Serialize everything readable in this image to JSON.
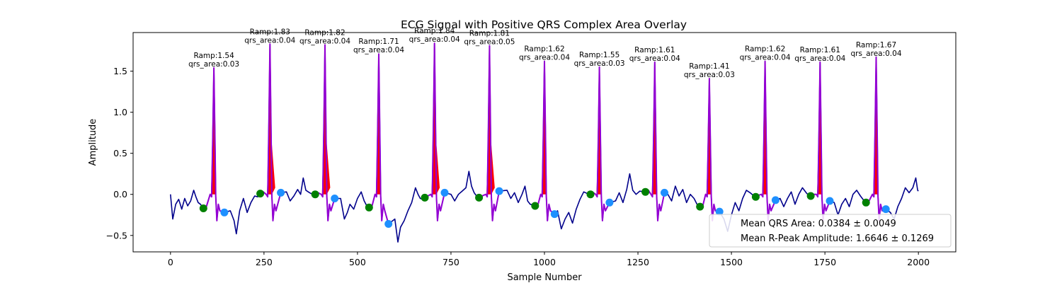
{
  "chart_data": {
    "type": "line",
    "title": "ECG Signal with Positive QRS Complex Area Overlay",
    "xlabel": "Sample Number",
    "ylabel": "Amplitude",
    "xlim": [
      -100,
      2100
    ],
    "ylim": [
      -0.7,
      1.97
    ],
    "xticks": [
      0,
      250,
      500,
      750,
      1000,
      1250,
      1500,
      1750,
      2000
    ],
    "yticks": [
      -0.5,
      0.0,
      0.5,
      1.0,
      1.5
    ],
    "grid": false,
    "colors": {
      "signal": "#00008b",
      "qrs_segment": "#9400d3",
      "qrs_fill": "#ff0000",
      "onset_marker": "#008000",
      "offset_marker": "#1e90ff"
    },
    "beats": [
      {
        "r": 116,
        "amp": 1.54,
        "qrs_area": 0.03,
        "onset": [
          88,
          -0.17
        ],
        "offset": [
          144,
          -0.22
        ],
        "ramp_label": "Ramp:1.54",
        "area_label": "qrs_area:0.03"
      },
      {
        "r": 266,
        "amp": 1.83,
        "qrs_area": 0.04,
        "onset": [
          240,
          0.01
        ],
        "offset": [
          295,
          0.02
        ],
        "ramp_label": "Ramp:1.83",
        "area_label": "qrs_area:0.04"
      },
      {
        "r": 413,
        "amp": 1.82,
        "qrs_area": 0.04,
        "onset": [
          387,
          0.0
        ],
        "offset": [
          439,
          -0.05
        ],
        "ramp_label": "Ramp:1.82",
        "area_label": "qrs_area:0.04"
      },
      {
        "r": 557,
        "amp": 1.71,
        "qrs_area": 0.04,
        "onset": [
          531,
          -0.16
        ],
        "offset": [
          583,
          -0.36
        ],
        "ramp_label": "Ramp:1.71",
        "area_label": "qrs_area:0.04"
      },
      {
        "r": 706,
        "amp": 1.84,
        "qrs_area": 0.04,
        "onset": [
          680,
          -0.04
        ],
        "offset": [
          733,
          0.02
        ],
        "ramp_label": "Ramp:1.84",
        "area_label": "qrs_area:0.04"
      },
      {
        "r": 853,
        "amp": 1.81,
        "qrs_area": 0.05,
        "onset": [
          825,
          -0.04
        ],
        "offset": [
          879,
          0.04
        ],
        "ramp_label": "Ramp:1.81",
        "area_label": "qrs_area:0.05"
      },
      {
        "r": 1000,
        "amp": 1.62,
        "qrs_area": 0.04,
        "onset": [
          975,
          -0.14
        ],
        "offset": [
          1027,
          -0.24
        ],
        "ramp_label": "Ramp:1.62",
        "area_label": "qrs_area:0.04"
      },
      {
        "r": 1147,
        "amp": 1.55,
        "qrs_area": 0.03,
        "onset": [
          1123,
          0.0
        ],
        "offset": [
          1174,
          -0.1
        ],
        "ramp_label": "Ramp:1.55",
        "area_label": "qrs_area:0.03"
      },
      {
        "r": 1295,
        "amp": 1.61,
        "qrs_area": 0.04,
        "onset": [
          1270,
          0.03
        ],
        "offset": [
          1321,
          0.02
        ],
        "ramp_label": "Ramp:1.61",
        "area_label": "qrs_area:0.04"
      },
      {
        "r": 1441,
        "amp": 1.41,
        "qrs_area": 0.03,
        "onset": [
          1416,
          -0.15
        ],
        "offset": [
          1468,
          -0.21
        ],
        "ramp_label": "Ramp:1.41",
        "area_label": "qrs_area:0.03"
      },
      {
        "r": 1590,
        "amp": 1.62,
        "qrs_area": 0.04,
        "onset": [
          1565,
          -0.03
        ],
        "offset": [
          1618,
          -0.07
        ],
        "ramp_label": "Ramp:1.62",
        "area_label": "qrs_area:0.04"
      },
      {
        "r": 1737,
        "amp": 1.61,
        "qrs_area": 0.04,
        "onset": [
          1712,
          -0.02
        ],
        "offset": [
          1763,
          -0.08
        ],
        "ramp_label": "Ramp:1.61",
        "area_label": "qrs_area:0.04"
      },
      {
        "r": 1887,
        "amp": 1.67,
        "qrs_area": 0.04,
        "onset": [
          1860,
          -0.1
        ],
        "offset": [
          1913,
          -0.18
        ],
        "ramp_label": "Ramp:1.67",
        "area_label": "qrs_area:0.04"
      }
    ],
    "baseline_points": [
      [
        0,
        0.0
      ],
      [
        6,
        -0.3
      ],
      [
        14,
        -0.12
      ],
      [
        22,
        -0.06
      ],
      [
        30,
        -0.18
      ],
      [
        38,
        -0.05
      ],
      [
        46,
        -0.14
      ],
      [
        54,
        -0.08
      ],
      [
        62,
        0.05
      ],
      [
        68,
        -0.03
      ],
      [
        74,
        -0.1
      ],
      [
        80,
        -0.12
      ],
      [
        160,
        -0.2
      ],
      [
        170,
        -0.32
      ],
      [
        176,
        -0.48
      ],
      [
        185,
        -0.2
      ],
      [
        195,
        -0.05
      ],
      [
        205,
        -0.22
      ],
      [
        215,
        -0.1
      ],
      [
        225,
        -0.02
      ],
      [
        233,
        -0.03
      ],
      [
        310,
        0.03
      ],
      [
        320,
        -0.08
      ],
      [
        330,
        -0.02
      ],
      [
        340,
        0.06
      ],
      [
        348,
        0.0
      ],
      [
        355,
        0.2
      ],
      [
        362,
        0.05
      ],
      [
        372,
        0.02
      ],
      [
        380,
        0.0
      ],
      [
        455,
        -0.05
      ],
      [
        465,
        -0.3
      ],
      [
        473,
        -0.22
      ],
      [
        480,
        -0.12
      ],
      [
        490,
        -0.18
      ],
      [
        500,
        -0.05
      ],
      [
        510,
        0.03
      ],
      [
        518,
        -0.08
      ],
      [
        525,
        -0.14
      ],
      [
        600,
        -0.3
      ],
      [
        608,
        -0.58
      ],
      [
        615,
        -0.4
      ],
      [
        625,
        -0.32
      ],
      [
        635,
        -0.2
      ],
      [
        645,
        -0.1
      ],
      [
        655,
        0.08
      ],
      [
        662,
        0.0
      ],
      [
        668,
        -0.05
      ],
      [
        675,
        -0.06
      ],
      [
        750,
        0.0
      ],
      [
        760,
        -0.08
      ],
      [
        770,
        0.0
      ],
      [
        780,
        0.04
      ],
      [
        790,
        0.08
      ],
      [
        798,
        0.28
      ],
      [
        805,
        0.1
      ],
      [
        812,
        0.02
      ],
      [
        820,
        -0.03
      ],
      [
        900,
        0.05
      ],
      [
        910,
        -0.05
      ],
      [
        920,
        0.02
      ],
      [
        930,
        -0.1
      ],
      [
        940,
        0.0
      ],
      [
        948,
        0.1
      ],
      [
        955,
        -0.08
      ],
      [
        962,
        -0.12
      ],
      [
        970,
        -0.13
      ],
      [
        1035,
        -0.2
      ],
      [
        1045,
        -0.42
      ],
      [
        1055,
        -0.3
      ],
      [
        1065,
        -0.22
      ],
      [
        1075,
        -0.35
      ],
      [
        1085,
        -0.18
      ],
      [
        1095,
        -0.06
      ],
      [
        1105,
        0.03
      ],
      [
        1115,
        0.01
      ],
      [
        1120,
        0.0
      ],
      [
        1190,
        -0.08
      ],
      [
        1200,
        0.02
      ],
      [
        1210,
        -0.1
      ],
      [
        1220,
        0.06
      ],
      [
        1228,
        0.25
      ],
      [
        1236,
        0.05
      ],
      [
        1245,
        0.0
      ],
      [
        1255,
        0.04
      ],
      [
        1265,
        0.03
      ],
      [
        1330,
        0.0
      ],
      [
        1340,
        -0.08
      ],
      [
        1350,
        0.1
      ],
      [
        1360,
        -0.02
      ],
      [
        1370,
        0.06
      ],
      [
        1380,
        -0.1
      ],
      [
        1390,
        0.0
      ],
      [
        1400,
        -0.05
      ],
      [
        1408,
        -0.12
      ],
      [
        1412,
        -0.15
      ],
      [
        1480,
        -0.3
      ],
      [
        1490,
        -0.45
      ],
      [
        1500,
        -0.25
      ],
      [
        1510,
        -0.1
      ],
      [
        1520,
        -0.2
      ],
      [
        1530,
        -0.05
      ],
      [
        1540,
        0.05
      ],
      [
        1550,
        0.02
      ],
      [
        1560,
        -0.02
      ],
      [
        1630,
        -0.05
      ],
      [
        1640,
        -0.15
      ],
      [
        1650,
        -0.05
      ],
      [
        1660,
        0.03
      ],
      [
        1670,
        -0.12
      ],
      [
        1680,
        0.0
      ],
      [
        1690,
        0.08
      ],
      [
        1700,
        0.02
      ],
      [
        1708,
        -0.02
      ],
      [
        1775,
        -0.1
      ],
      [
        1785,
        -0.25
      ],
      [
        1795,
        -0.12
      ],
      [
        1805,
        -0.05
      ],
      [
        1815,
        -0.15
      ],
      [
        1825,
        0.0
      ],
      [
        1835,
        0.05
      ],
      [
        1845,
        -0.02
      ],
      [
        1855,
        -0.08
      ],
      [
        1925,
        -0.22
      ],
      [
        1935,
        -0.3
      ],
      [
        1945,
        -0.15
      ],
      [
        1955,
        -0.05
      ],
      [
        1965,
        0.08
      ],
      [
        1975,
        0.02
      ],
      [
        1985,
        0.08
      ],
      [
        1993,
        0.2
      ],
      [
        1998,
        0.05
      ],
      [
        2000,
        0.04
      ]
    ],
    "legend": {
      "placement": "lower-right",
      "entries": [
        "Mean QRS Area: 0.0384 ± 0.0049",
        "Mean R-Peak Amplitude: 1.6646 ± 0.1269"
      ]
    }
  }
}
